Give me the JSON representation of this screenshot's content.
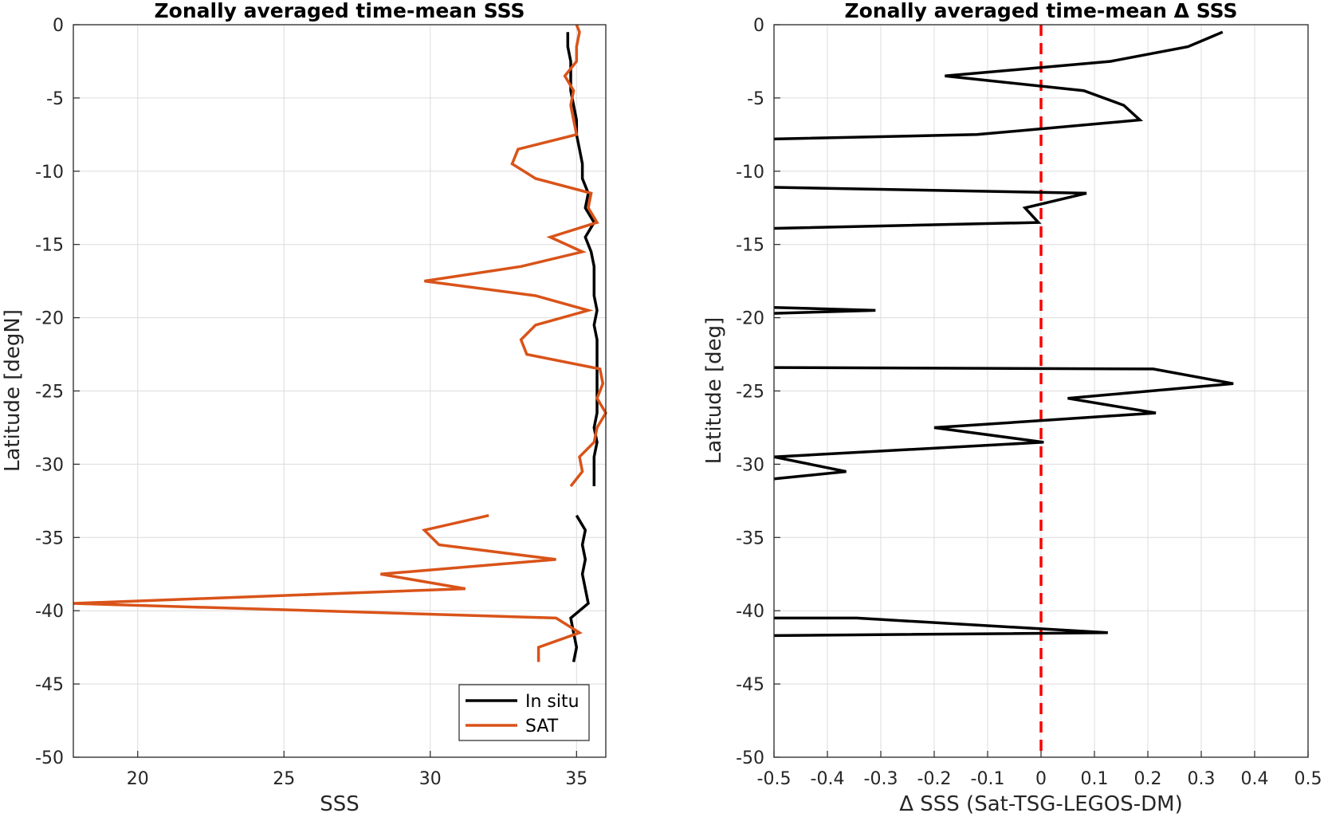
{
  "chart_data": [
    {
      "type": "line",
      "title": "Zonally averaged time-mean SSS",
      "xlabel": "SSS",
      "ylabel": "Latitude [degN]",
      "xlim": [
        17.8,
        36
      ],
      "ylim": [
        -50,
        0
      ],
      "xticks": [
        20,
        25,
        30,
        35
      ],
      "yticks": [
        0,
        -5,
        -10,
        -15,
        -20,
        -25,
        -30,
        -35,
        -40,
        -45,
        -50
      ],
      "grid": true,
      "legend": "bottom-right",
      "series": [
        {
          "name": "In situ",
          "color": "#000000",
          "segments": [
            [
              [
                34.7,
                -0.5
              ],
              [
                34.7,
                -1.5
              ],
              [
                34.8,
                -2.5
              ],
              [
                34.8,
                -3.5
              ],
              [
                34.8,
                -4.5
              ],
              [
                34.9,
                -5.5
              ],
              [
                35.0,
                -6.5
              ],
              [
                35.0,
                -7.5
              ],
              [
                35.1,
                -8.5
              ],
              [
                35.2,
                -9.5
              ],
              [
                35.2,
                -10.5
              ],
              [
                35.4,
                -11.5
              ],
              [
                35.3,
                -12.5
              ],
              [
                35.6,
                -13.5
              ],
              [
                35.3,
                -14.5
              ],
              [
                35.5,
                -15.5
              ],
              [
                35.6,
                -16.5
              ],
              [
                35.6,
                -17.5
              ],
              [
                35.6,
                -18.5
              ],
              [
                35.7,
                -19.5
              ],
              [
                35.6,
                -20.5
              ],
              [
                35.7,
                -21.5
              ],
              [
                35.7,
                -22.5
              ],
              [
                35.7,
                -23.5
              ],
              [
                35.7,
                -24.5
              ],
              [
                35.7,
                -25.5
              ],
              [
                35.7,
                -26.5
              ],
              [
                35.6,
                -27.5
              ],
              [
                35.7,
                -28.5
              ],
              [
                35.6,
                -29.5
              ],
              [
                35.6,
                -30.5
              ],
              [
                35.6,
                -31.5
              ]
            ],
            [
              [
                35.0,
                -33.5
              ],
              [
                35.3,
                -34.5
              ],
              [
                35.2,
                -35.5
              ],
              [
                35.3,
                -36.5
              ],
              [
                35.2,
                -37.5
              ],
              [
                35.3,
                -38.5
              ],
              [
                35.4,
                -39.5
              ],
              [
                34.8,
                -40.5
              ],
              [
                34.9,
                -41.5
              ],
              [
                35.0,
                -42.5
              ],
              [
                34.9,
                -43.5
              ]
            ]
          ]
        },
        {
          "name": "SAT",
          "color": "#d95319",
          "segments": [
            [
              [
                35.0,
                0.0
              ],
              [
                35.1,
                -0.5
              ],
              [
                35.0,
                -1.5
              ],
              [
                35.0,
                -2.5
              ],
              [
                34.6,
                -3.5
              ],
              [
                34.9,
                -4.5
              ],
              [
                34.8,
                -5.5
              ],
              [
                34.9,
                -6.5
              ],
              [
                35.0,
                -7.5
              ],
              [
                33.0,
                -8.5
              ],
              [
                32.8,
                -9.5
              ],
              [
                33.6,
                -10.5
              ],
              [
                35.5,
                -11.5
              ],
              [
                35.4,
                -12.5
              ],
              [
                35.7,
                -13.5
              ],
              [
                34.1,
                -14.5
              ],
              [
                35.2,
                -15.5
              ],
              [
                33.1,
                -16.5
              ],
              [
                29.8,
                -17.5
              ],
              [
                33.6,
                -18.5
              ],
              [
                35.4,
                -19.5
              ],
              [
                33.6,
                -20.5
              ],
              [
                33.1,
                -21.5
              ],
              [
                33.3,
                -22.5
              ],
              [
                35.8,
                -23.5
              ],
              [
                35.9,
                -24.5
              ],
              [
                35.7,
                -25.5
              ],
              [
                36.0,
                -26.5
              ],
              [
                35.7,
                -27.5
              ],
              [
                35.6,
                -28.5
              ],
              [
                35.1,
                -29.5
              ],
              [
                35.2,
                -30.5
              ],
              [
                34.8,
                -31.5
              ]
            ],
            [
              [
                32.0,
                -33.5
              ],
              [
                29.8,
                -34.5
              ],
              [
                30.3,
                -35.5
              ],
              [
                34.3,
                -36.5
              ],
              [
                28.3,
                -37.5
              ],
              [
                31.2,
                -38.5
              ],
              [
                17.8,
                -39.5
              ],
              [
                34.3,
                -40.5
              ],
              [
                35.1,
                -41.5
              ],
              [
                33.7,
                -42.5
              ],
              [
                33.7,
                -43.5
              ]
            ]
          ]
        }
      ]
    },
    {
      "type": "line",
      "title": "Zonally averaged time-mean Δ SSS",
      "xlabel": "Δ SSS (Sat-TSG-LEGOS-DM)",
      "ylabel": "Latitude [deg]",
      "xlim": [
        -0.5,
        0.5
      ],
      "ylim": [
        -50,
        0
      ],
      "xticks": [
        -0.5,
        -0.4,
        -0.3,
        -0.2,
        -0.1,
        0,
        0.1,
        0.2,
        0.3,
        0.4,
        0.5
      ],
      "yticks": [
        0,
        -5,
        -10,
        -15,
        -20,
        -25,
        -30,
        -35,
        -40,
        -45,
        -50
      ],
      "grid": true,
      "reference_line": {
        "x": 0,
        "color": "#ff0000",
        "style": "dashed"
      },
      "series": [
        {
          "color": "#000000",
          "segments": [
            [
              [
                0.34,
                -0.5
              ],
              [
                0.275,
                -1.5
              ],
              [
                0.13,
                -2.5
              ],
              [
                -0.18,
                -3.5
              ],
              [
                0.08,
                -4.5
              ],
              [
                0.155,
                -5.5
              ],
              [
                0.185,
                -6.5
              ],
              [
                -0.12,
                -7.5
              ],
              [
                -0.5,
                -7.8
              ]
            ],
            [
              [
                -0.5,
                -11.1
              ],
              [
                0.085,
                -11.5
              ],
              [
                -0.03,
                -12.5
              ],
              [
                -0.005,
                -13.5
              ],
              [
                -0.5,
                -13.9
              ]
            ],
            [
              [
                -0.5,
                -19.3
              ],
              [
                -0.31,
                -19.5
              ],
              [
                -0.5,
                -19.7
              ]
            ],
            [
              [
                -0.5,
                -23.4
              ],
              [
                0.21,
                -23.5
              ],
              [
                0.36,
                -24.5
              ],
              [
                0.05,
                -25.5
              ],
              [
                0.215,
                -26.5
              ],
              [
                -0.2,
                -27.5
              ],
              [
                0.005,
                -28.5
              ],
              [
                -0.5,
                -29.5
              ],
              [
                -0.365,
                -30.5
              ],
              [
                -0.5,
                -31.0
              ]
            ],
            [
              [
                -0.5,
                -40.5
              ],
              [
                -0.345,
                -40.5
              ],
              [
                0.125,
                -41.5
              ],
              [
                -0.5,
                -41.7
              ]
            ]
          ]
        }
      ]
    }
  ]
}
